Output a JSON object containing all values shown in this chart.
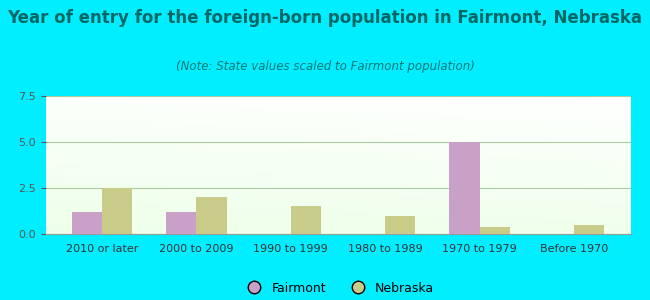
{
  "title": "Year of entry for the foreign-born population in Fairmont, Nebraska",
  "subtitle": "(Note: State values scaled to Fairmont population)",
  "categories": [
    "2010 or later",
    "2000 to 2009",
    "1990 to 1999",
    "1980 to 1989",
    "1970 to 1979",
    "Before 1970"
  ],
  "fairmont_values": [
    1.2,
    1.2,
    0,
    0,
    5.0,
    0
  ],
  "nebraska_values": [
    2.5,
    2.0,
    1.5,
    1.0,
    0.4,
    0.5
  ],
  "fairmont_color": "#c8a0c8",
  "nebraska_color": "#c8cc88",
  "ylim": [
    0,
    7.5
  ],
  "yticks": [
    0,
    2.5,
    5,
    7.5
  ],
  "background_outer": "#00eeff",
  "title_color": "#006666",
  "subtitle_color": "#007777",
  "title_fontsize": 12,
  "subtitle_fontsize": 8.5,
  "tick_fontsize": 8,
  "legend_fontsize": 9,
  "bar_width": 0.32,
  "grid_color": "#aacca0",
  "axis_color": "#999999"
}
